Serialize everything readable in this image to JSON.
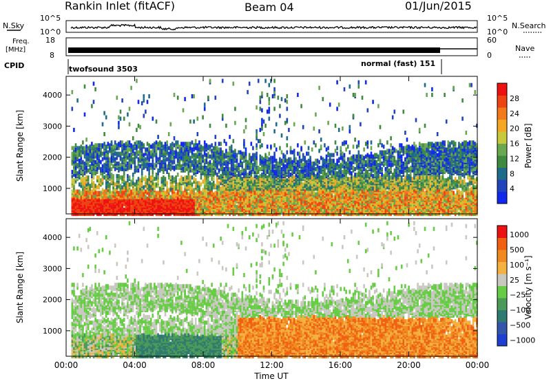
{
  "header": {
    "radar": "Rankin Inlet (fitACF)",
    "beam": "Beam 04",
    "date": "01/Jun/2015"
  },
  "strips": {
    "nsky_label": "N.Sky",
    "nsky_ticks": [
      "10^5",
      "10^0"
    ],
    "nsearch_label": "N.Search",
    "freq_label_line1": "Freq.",
    "freq_label_line2": "[MHz]",
    "freq_ticks": [
      "18",
      "8"
    ],
    "nave_label": "Nave",
    "nave_ticks": [
      "60",
      "0"
    ],
    "cpid_label": "CPID",
    "cpid_modes": [
      {
        "name": "twofsound 3503",
        "start_hour": 0.3
      },
      {
        "name": "normal (fast) 151",
        "start_hour": 22.1
      }
    ]
  },
  "chart_data": [
    {
      "type": "heatmap",
      "title": "",
      "xlabel": "Time UT",
      "ylabel": "Slant Range [km]",
      "xlim": [
        0,
        24
      ],
      "ylim": [
        180,
        4600
      ],
      "xticks": [
        "00:00",
        "04:00",
        "08:00",
        "12:00",
        "16:00",
        "20:00",
        "00:00"
      ],
      "yticks": [
        1000,
        2000,
        3000,
        4000
      ],
      "colorbar": {
        "label": "Power [dB]",
        "ticks": [
          "4",
          "8",
          "12",
          "16",
          "20",
          "24",
          "28"
        ],
        "colors": [
          "#1028ee",
          "#2244bb",
          "#1f6b8a",
          "#3f8a3f",
          "#6aa84f",
          "#c8c83c",
          "#f5a623",
          "#f07a1c",
          "#ee4411",
          "#ee1111"
        ]
      }
    },
    {
      "type": "heatmap",
      "title": "",
      "xlabel": "Time UT",
      "ylabel": "Slant Range [km]",
      "xlim": [
        0,
        24
      ],
      "ylim": [
        180,
        4600
      ],
      "xticks": [
        "00:00",
        "04:00",
        "08:00",
        "12:00",
        "16:00",
        "20:00",
        "00:00"
      ],
      "yticks": [
        1000,
        2000,
        3000,
        4000
      ],
      "colorbar": {
        "label": "Velocity [m s⁻¹]",
        "ticks": [
          "1000",
          "500",
          "100",
          "25",
          "−25",
          "−100",
          "−500",
          "−1000"
        ],
        "colors": [
          "#1e3fd0",
          "#3355aa",
          "#2f7a70",
          "#4c9a58",
          "#66cc44",
          "#c8c8c0",
          "#f4b040",
          "#f08a20",
          "#f06010",
          "#ee1111"
        ]
      }
    }
  ],
  "bottom_axis": {
    "ticks": [
      "00:00",
      "04:00",
      "08:00",
      "12:00",
      "16:00",
      "20:00",
      "00:00"
    ],
    "label": "Time UT"
  }
}
